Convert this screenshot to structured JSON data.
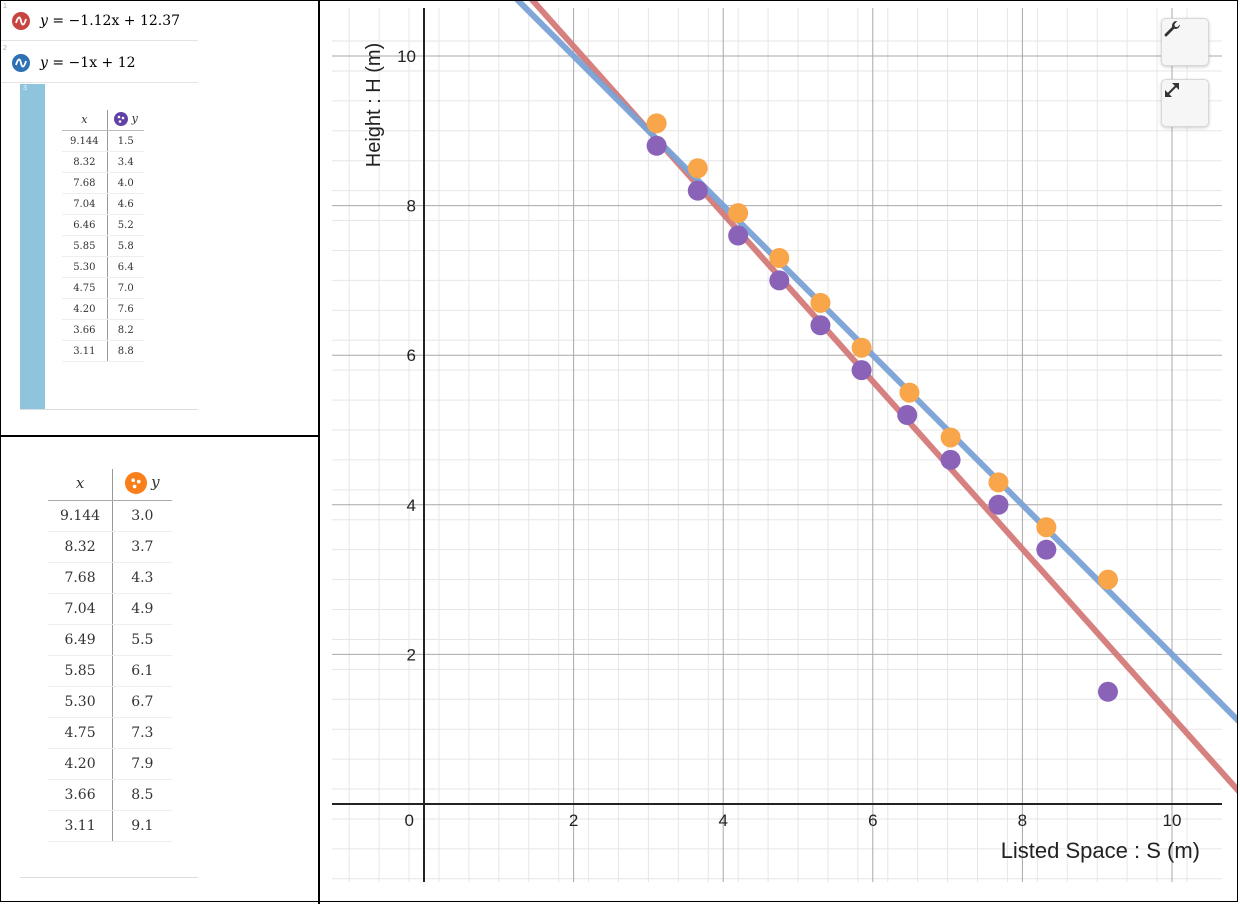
{
  "expressions": [
    {
      "number": "1",
      "equation_lhs": "y",
      "equation_rhs": "= −1.12x + 12.37",
      "color": "#c74440"
    },
    {
      "number": "2",
      "equation_lhs": "y",
      "equation_rhs": "= −1x + 12",
      "color": "#2d70b3"
    }
  ],
  "table_purple": {
    "number": "3",
    "headers": [
      "x",
      "y"
    ],
    "point_color": "#6042a6",
    "rows": [
      [
        "9.144",
        "1.5"
      ],
      [
        "8.32",
        "3.4"
      ],
      [
        "7.68",
        "4.0"
      ],
      [
        "7.04",
        "4.6"
      ],
      [
        "6.46",
        "5.2"
      ],
      [
        "5.85",
        "5.8"
      ],
      [
        "5.30",
        "6.4"
      ],
      [
        "4.75",
        "7.0"
      ],
      [
        "4.20",
        "7.6"
      ],
      [
        "3.66",
        "8.2"
      ],
      [
        "3.11",
        "8.8"
      ]
    ]
  },
  "table_orange": {
    "headers": [
      "x",
      "y"
    ],
    "point_color": "#fa7e19",
    "rows": [
      [
        "9.144",
        "3.0"
      ],
      [
        "8.32",
        "3.7"
      ],
      [
        "7.68",
        "4.3"
      ],
      [
        "7.04",
        "4.9"
      ],
      [
        "6.49",
        "5.5"
      ],
      [
        "5.85",
        "6.1"
      ],
      [
        "5.30",
        "6.7"
      ],
      [
        "4.75",
        "7.3"
      ],
      [
        "4.20",
        "7.9"
      ],
      [
        "3.66",
        "8.5"
      ],
      [
        "3.11",
        "9.1"
      ]
    ]
  },
  "chart_data": {
    "type": "scatter",
    "xlabel": "Listed Space : S (m)",
    "ylabel": "Height : H (m)",
    "xlim": [
      -1.35,
      10.65
    ],
    "ylim": [
      -1.05,
      10.65
    ],
    "x_ticks": [
      "0",
      "2",
      "4",
      "6",
      "8",
      "10"
    ],
    "y_ticks": [
      "2",
      "4",
      "6",
      "8",
      "10"
    ],
    "grid": true,
    "lines": [
      {
        "slope": -1.12,
        "intercept": 12.37,
        "color": "#d47a7a"
      },
      {
        "slope": -1,
        "intercept": 12,
        "color": "#7aa3d6"
      }
    ],
    "series": [
      {
        "color": "#8a63b8",
        "x": [
          9.144,
          8.32,
          7.68,
          7.04,
          6.46,
          5.85,
          5.3,
          4.75,
          4.2,
          3.66,
          3.11
        ],
        "y": [
          1.5,
          3.4,
          4.0,
          4.6,
          5.2,
          5.8,
          6.4,
          7.0,
          7.6,
          8.2,
          8.8
        ]
      },
      {
        "color": "#f9a54a",
        "x": [
          9.144,
          8.32,
          7.68,
          7.04,
          6.49,
          5.85,
          5.3,
          4.75,
          4.2,
          3.66,
          3.11
        ],
        "y": [
          3.0,
          3.7,
          4.3,
          4.9,
          5.5,
          6.1,
          6.7,
          7.3,
          7.9,
          8.5,
          9.1
        ]
      }
    ]
  },
  "toolbar": {
    "settings_icon": "wrench-icon",
    "zoom_icon": "expand-icon"
  }
}
